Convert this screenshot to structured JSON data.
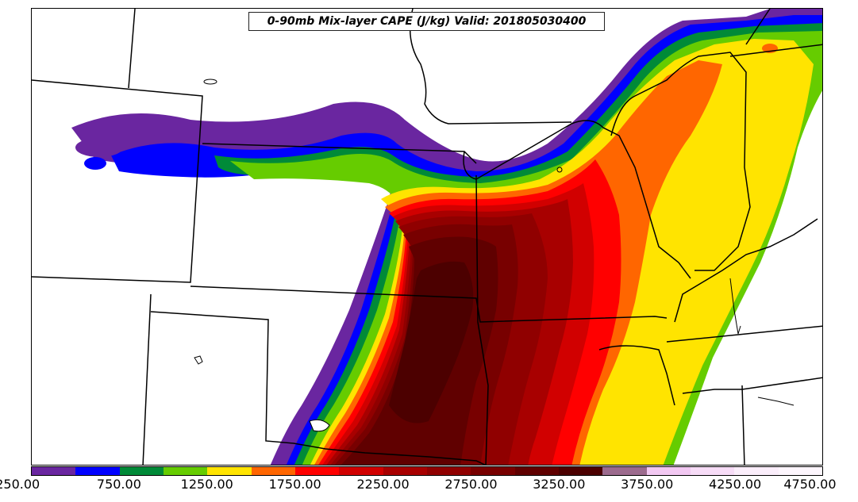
{
  "map": {
    "title": "0-90mb Mix-layer CAPE (J/kg) Valid: 201805030400"
  },
  "colorbar": {
    "colors": [
      "#6a26a0",
      "#0000ff",
      "#008a38",
      "#66cc00",
      "#ffe400",
      "#ff6600",
      "#ff0000",
      "#d10000",
      "#a80000",
      "#900000",
      "#780000",
      "#600000",
      "#4c0000",
      "#9c6b8e",
      "#f2c8f2",
      "#f7dcf7",
      "#fbeefb",
      "#fdf6fd"
    ],
    "tick_labels": [
      "250.00",
      "750.00",
      "1250.00",
      "1750.00",
      "2250.00",
      "2750.00",
      "3250.00",
      "3750.00",
      "4250.00",
      "4750.00"
    ]
  }
}
